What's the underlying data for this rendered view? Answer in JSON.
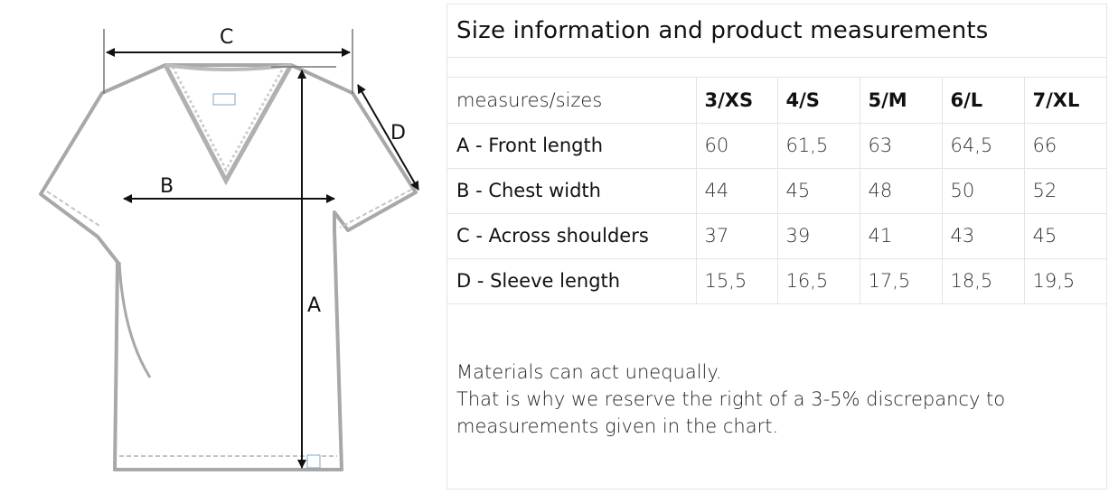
{
  "diagram": {
    "label_a": "A",
    "label_b": "B",
    "label_c": "C",
    "label_d": "D",
    "icon": "v-neck-tshirt-icon",
    "line_color": "#9a9a9a"
  },
  "chart_data": {
    "type": "table",
    "title": "Size information and product measurements",
    "columns": [
      "measures/sizes",
      "3/XS",
      "4/S",
      "5/M",
      "6/L",
      "7/XL"
    ],
    "rows": [
      {
        "label": "A - Front length",
        "values": [
          "60",
          "61,5",
          "63",
          "64,5",
          "66"
        ]
      },
      {
        "label": "B - Chest width",
        "values": [
          "44",
          "45",
          "48",
          "50",
          "52"
        ]
      },
      {
        "label": "C - Across shoulders",
        "values": [
          "37",
          "39",
          "41",
          "43",
          "45"
        ]
      },
      {
        "label": "D - Sleeve length",
        "values": [
          "15,5",
          "16,5",
          "17,5",
          "18,5",
          "19,5"
        ]
      }
    ]
  },
  "note": {
    "line1": "Materials can act unequally.",
    "line2": "That is why we reserve the right of a 3-5% discrepancy to",
    "line3": "measurements given in the chart."
  }
}
